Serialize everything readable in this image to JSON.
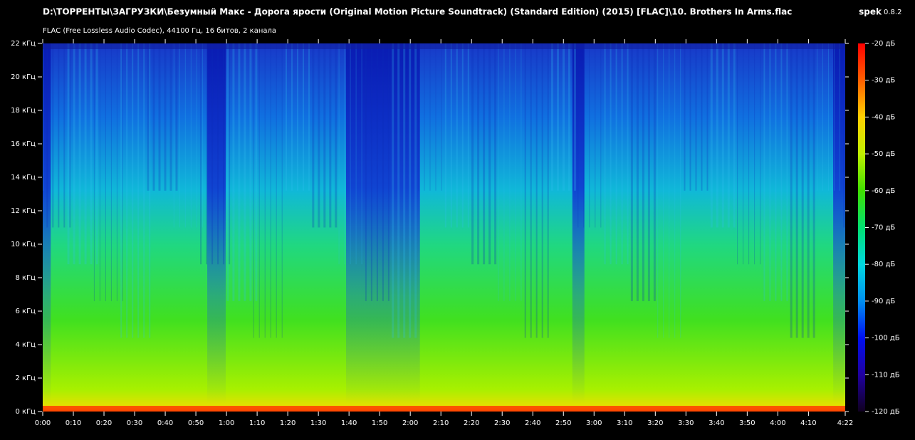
{
  "header": {
    "path": "D:\\ТОРРЕНТЫ\\ЗАГРУЗКИ\\Безумный Макс - Дорога ярости (Original Motion Picture Soundtrack) (Standard Edition) (2015) [FLAC]\\10. Brothers In Arms.flac",
    "info": "FLAC (Free Lossless Audio Codec), 44100 Гц, 16 битов, 2 канала",
    "app": "spek",
    "version": "0.8.2"
  },
  "frequency_axis": {
    "ticks": [
      {
        "value": 0,
        "label": "0 кГц"
      },
      {
        "value": 2,
        "label": "2 кГц"
      },
      {
        "value": 4,
        "label": "4 кГц"
      },
      {
        "value": 6,
        "label": "6 кГц"
      },
      {
        "value": 8,
        "label": "8 кГц"
      },
      {
        "value": 10,
        "label": "10 кГц"
      },
      {
        "value": 12,
        "label": "12 кГц"
      },
      {
        "value": 14,
        "label": "14 кГц"
      },
      {
        "value": 16,
        "label": "16 кГц"
      },
      {
        "value": 18,
        "label": "18 кГц"
      },
      {
        "value": 20,
        "label": "20 кГц"
      },
      {
        "value": 22,
        "label": "22 кГц"
      }
    ]
  },
  "time_axis": {
    "ticks": [
      {
        "value": 0,
        "label": "0:00"
      },
      {
        "value": 10,
        "label": "0:10"
      },
      {
        "value": 20,
        "label": "0:20"
      },
      {
        "value": 30,
        "label": "0:30"
      },
      {
        "value": 40,
        "label": "0:40"
      },
      {
        "value": 50,
        "label": "0:50"
      },
      {
        "value": 60,
        "label": "1:00"
      },
      {
        "value": 70,
        "label": "1:10"
      },
      {
        "value": 80,
        "label": "1:20"
      },
      {
        "value": 90,
        "label": "1:30"
      },
      {
        "value": 100,
        "label": "1:40"
      },
      {
        "value": 110,
        "label": "1:50"
      },
      {
        "value": 120,
        "label": "2:00"
      },
      {
        "value": 130,
        "label": "2:10"
      },
      {
        "value": 140,
        "label": "2:20"
      },
      {
        "value": 150,
        "label": "2:30"
      },
      {
        "value": 160,
        "label": "2:40"
      },
      {
        "value": 170,
        "label": "2:50"
      },
      {
        "value": 180,
        "label": "3:00"
      },
      {
        "value": 190,
        "label": "3:10"
      },
      {
        "value": 200,
        "label": "3:20"
      },
      {
        "value": 210,
        "label": "3:30"
      },
      {
        "value": 220,
        "label": "3:40"
      },
      {
        "value": 230,
        "label": "3:50"
      },
      {
        "value": 240,
        "label": "4:00"
      },
      {
        "value": 250,
        "label": "4:10"
      },
      {
        "value": 262,
        "label": "4:22"
      }
    ]
  },
  "level_axis": {
    "ticks": [
      {
        "value": -20,
        "label": "-20 дБ"
      },
      {
        "value": -30,
        "label": "-30 дБ"
      },
      {
        "value": -40,
        "label": "-40 дБ"
      },
      {
        "value": -50,
        "label": "-50 дБ"
      },
      {
        "value": -60,
        "label": "-60 дБ"
      },
      {
        "value": -70,
        "label": "-70 дБ"
      },
      {
        "value": -80,
        "label": "-80 дБ"
      },
      {
        "value": -90,
        "label": "-90 дБ"
      },
      {
        "value": -100,
        "label": "-100 дБ"
      },
      {
        "value": -110,
        "label": "-110 дБ"
      },
      {
        "value": -120,
        "label": "-120 дБ"
      }
    ]
  }
}
